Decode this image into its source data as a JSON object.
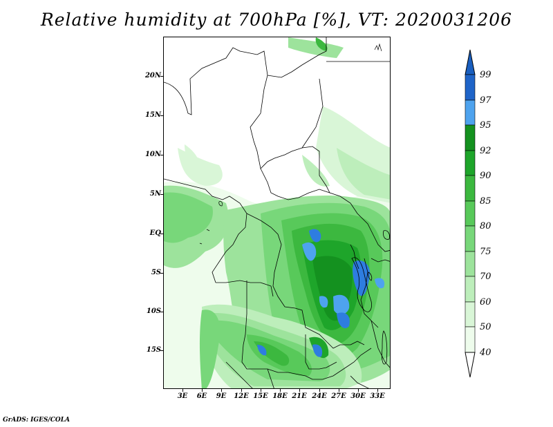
{
  "title": "Relative humidity at 700hPa [%], VT: 2020031206",
  "credit": "GrADS: IGES/COLA",
  "lat_labels": [
    "20N",
    "15N",
    "10N",
    "5N",
    "EQ",
    "5S",
    "10S",
    "15S"
  ],
  "lon_labels": [
    "3E",
    "6E",
    "9E",
    "12E",
    "15E",
    "18E",
    "21E",
    "24E",
    "27E",
    "30E",
    "33E"
  ],
  "colorbar": {
    "labels": [
      "99",
      "97",
      "95",
      "92",
      "90",
      "85",
      "80",
      "75",
      "70",
      "60",
      "50",
      "40"
    ],
    "colors": [
      "#1f64c8",
      "#2e7de0",
      "#4ea3ee",
      "#14911f",
      "#1ea52a",
      "#3cb83f",
      "#58c95a",
      "#78d77a",
      "#9de39c",
      "#bdeebb",
      "#d9f6d7",
      "#eefcec",
      "#ffffff",
      "#1a5fc0"
    ]
  }
}
